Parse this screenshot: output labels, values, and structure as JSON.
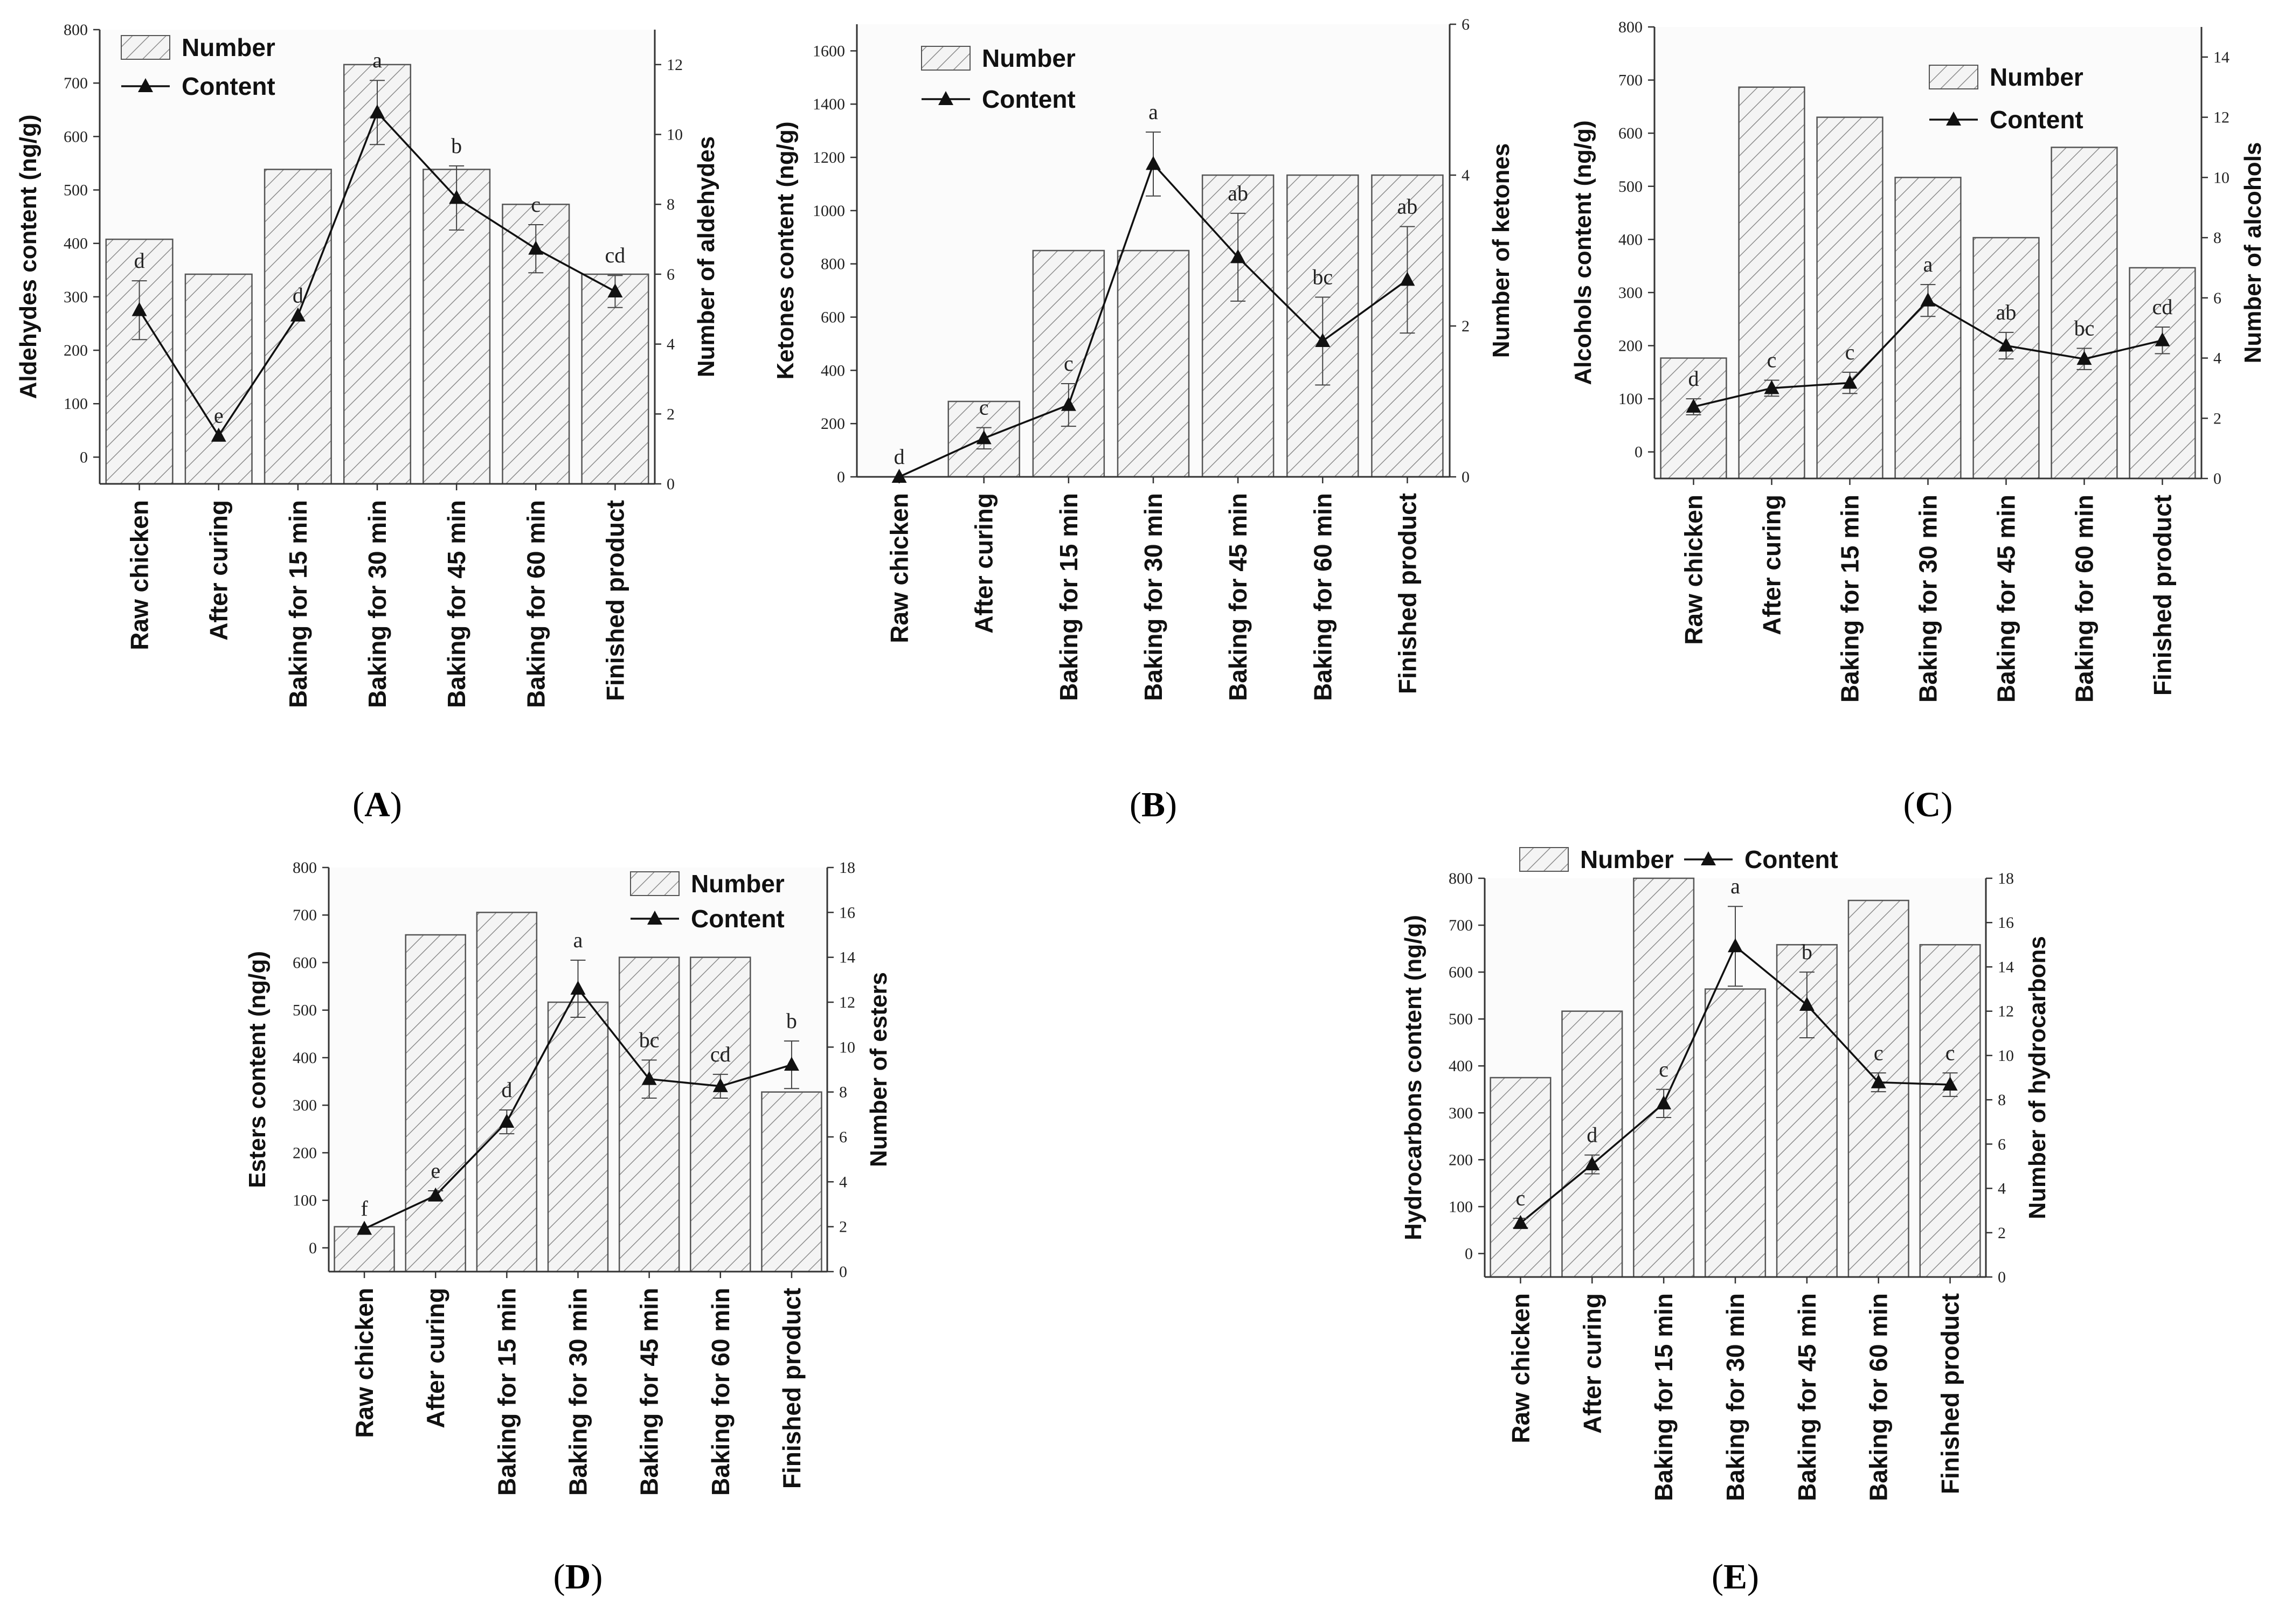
{
  "figure": {
    "categories": [
      "Raw chicken",
      "After curing",
      "Baking for 15 min",
      "Baking for 30 min",
      "Baking for 45 min",
      "Baking for 60 min",
      "Finished product"
    ],
    "legend": {
      "number": "Number",
      "content": "Content"
    },
    "colors": {
      "bar_fill": "#f4f4f4",
      "bar_hatch": "#8c8c8c",
      "line": "#111111"
    }
  },
  "chart_data": [
    {
      "panel": "A",
      "type": "bar",
      "ylabel": "Aldehydes content (ng/g)",
      "y2label": "Number of aldehydes",
      "ylim": [
        -50,
        800
      ],
      "yticks": [
        0,
        100,
        200,
        300,
        400,
        500,
        600,
        700,
        800
      ],
      "y2lim": [
        0,
        13
      ],
      "y2ticks": [
        0,
        2,
        4,
        6,
        8,
        10,
        12
      ],
      "series": [
        {
          "name": "Number",
          "axis": "right",
          "values": [
            7,
            6,
            9,
            12,
            9,
            8,
            6
          ]
        },
        {
          "name": "Content",
          "axis": "left",
          "values": [
            275,
            40,
            265,
            645,
            485,
            390,
            310
          ],
          "errors": [
            55,
            0,
            0,
            60,
            60,
            45,
            30
          ],
          "labels": [
            "d",
            "e",
            "d",
            "a",
            "b",
            "c",
            "cd"
          ]
        }
      ]
    },
    {
      "panel": "B",
      "type": "bar",
      "ylabel": "Ketones content (ng/g)",
      "y2label": "Number of ketones",
      "ylim": [
        0,
        1700
      ],
      "yticks": [
        0,
        200,
        400,
        600,
        800,
        1000,
        1200,
        1400,
        1600
      ],
      "y2lim": [
        0,
        6
      ],
      "y2ticks": [
        0,
        2,
        4,
        6
      ],
      "series": [
        {
          "name": "Number",
          "axis": "right",
          "values": [
            0,
            1,
            3,
            3,
            4,
            4,
            4
          ]
        },
        {
          "name": "Content",
          "axis": "left",
          "values": [
            0,
            145,
            270,
            1175,
            825,
            510,
            740
          ],
          "errors": [
            0,
            40,
            80,
            120,
            165,
            165,
            200
          ],
          "labels": [
            "d",
            "c",
            "c",
            "a",
            "ab",
            "bc",
            "ab"
          ]
        }
      ]
    },
    {
      "panel": "C",
      "type": "bar",
      "ylabel": "Alcohols content (ng/g)",
      "y2label": "Number of alcohols",
      "ylim": [
        -50,
        800
      ],
      "yticks": [
        0,
        100,
        200,
        300,
        400,
        500,
        600,
        700,
        800
      ],
      "y2lim": [
        0,
        15
      ],
      "y2ticks": [
        0,
        2,
        4,
        6,
        8,
        10,
        12,
        14
      ],
      "series": [
        {
          "name": "Number",
          "axis": "right",
          "values": [
            4,
            13,
            12,
            10,
            8,
            11,
            7
          ]
        },
        {
          "name": "Content",
          "axis": "left",
          "values": [
            85,
            120,
            130,
            285,
            200,
            175,
            210
          ],
          "errors": [
            15,
            15,
            20,
            30,
            25,
            20,
            25
          ],
          "labels": [
            "d",
            "c",
            "c",
            "a",
            "ab",
            "bc",
            "cd"
          ]
        }
      ]
    },
    {
      "panel": "D",
      "type": "bar",
      "ylabel": "Esters content (ng/g)",
      "y2label": "Number of esters",
      "ylim": [
        -50,
        800
      ],
      "yticks": [
        0,
        100,
        200,
        300,
        400,
        500,
        600,
        700,
        800
      ],
      "y2lim": [
        0,
        18
      ],
      "y2ticks": [
        0,
        2,
        4,
        6,
        8,
        10,
        12,
        14,
        16,
        18
      ],
      "series": [
        {
          "name": "Number",
          "axis": "right",
          "values": [
            2,
            15,
            16,
            12,
            14,
            14,
            8
          ]
        },
        {
          "name": "Content",
          "axis": "left",
          "values": [
            40,
            110,
            265,
            545,
            355,
            340,
            385
          ],
          "errors": [
            0,
            10,
            25,
            60,
            40,
            25,
            50
          ],
          "labels": [
            "f",
            "e",
            "d",
            "a",
            "bc",
            "cd",
            "b"
          ]
        }
      ]
    },
    {
      "panel": "E",
      "type": "bar",
      "ylabel": "Hydrocarbons content (ng/g)",
      "y2label": "Number of hydrocarbons",
      "ylim": [
        -50,
        800
      ],
      "yticks": [
        0,
        100,
        200,
        300,
        400,
        500,
        600,
        700,
        800
      ],
      "y2lim": [
        0,
        18
      ],
      "y2ticks": [
        0,
        2,
        4,
        6,
        8,
        10,
        12,
        14,
        16,
        18
      ],
      "series": [
        {
          "name": "Number",
          "axis": "right",
          "values": [
            9,
            12,
            18,
            13,
            15,
            17,
            15
          ]
        },
        {
          "name": "Content",
          "axis": "left",
          "values": [
            65,
            190,
            320,
            655,
            530,
            365,
            360
          ],
          "errors": [
            10,
            20,
            30,
            85,
            70,
            20,
            25
          ],
          "labels": [
            "c",
            "d",
            "c",
            "a",
            "b",
            "c",
            "c"
          ]
        }
      ]
    }
  ]
}
